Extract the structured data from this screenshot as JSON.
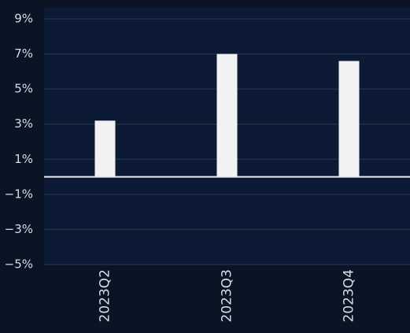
{
  "chart_data": {
    "type": "bar",
    "categories": [
      "2023Q2",
      "2023Q3",
      "2023Q4"
    ],
    "values": [
      3.2,
      7.0,
      6.6
    ],
    "color": "#f2f2f4",
    "ylim": [
      -5,
      9
    ],
    "yticks": [
      {
        "value": -5,
        "label": "−5%"
      },
      {
        "value": -3,
        "label": "−3%"
      },
      {
        "value": -1,
        "label": "−1%"
      },
      {
        "value": 1,
        "label": "1%"
      },
      {
        "value": 3,
        "label": "3%"
      },
      {
        "value": 5,
        "label": "5%"
      },
      {
        "value": 7,
        "label": "7%"
      },
      {
        "value": 9,
        "label": "9%"
      }
    ],
    "grid": true
  }
}
